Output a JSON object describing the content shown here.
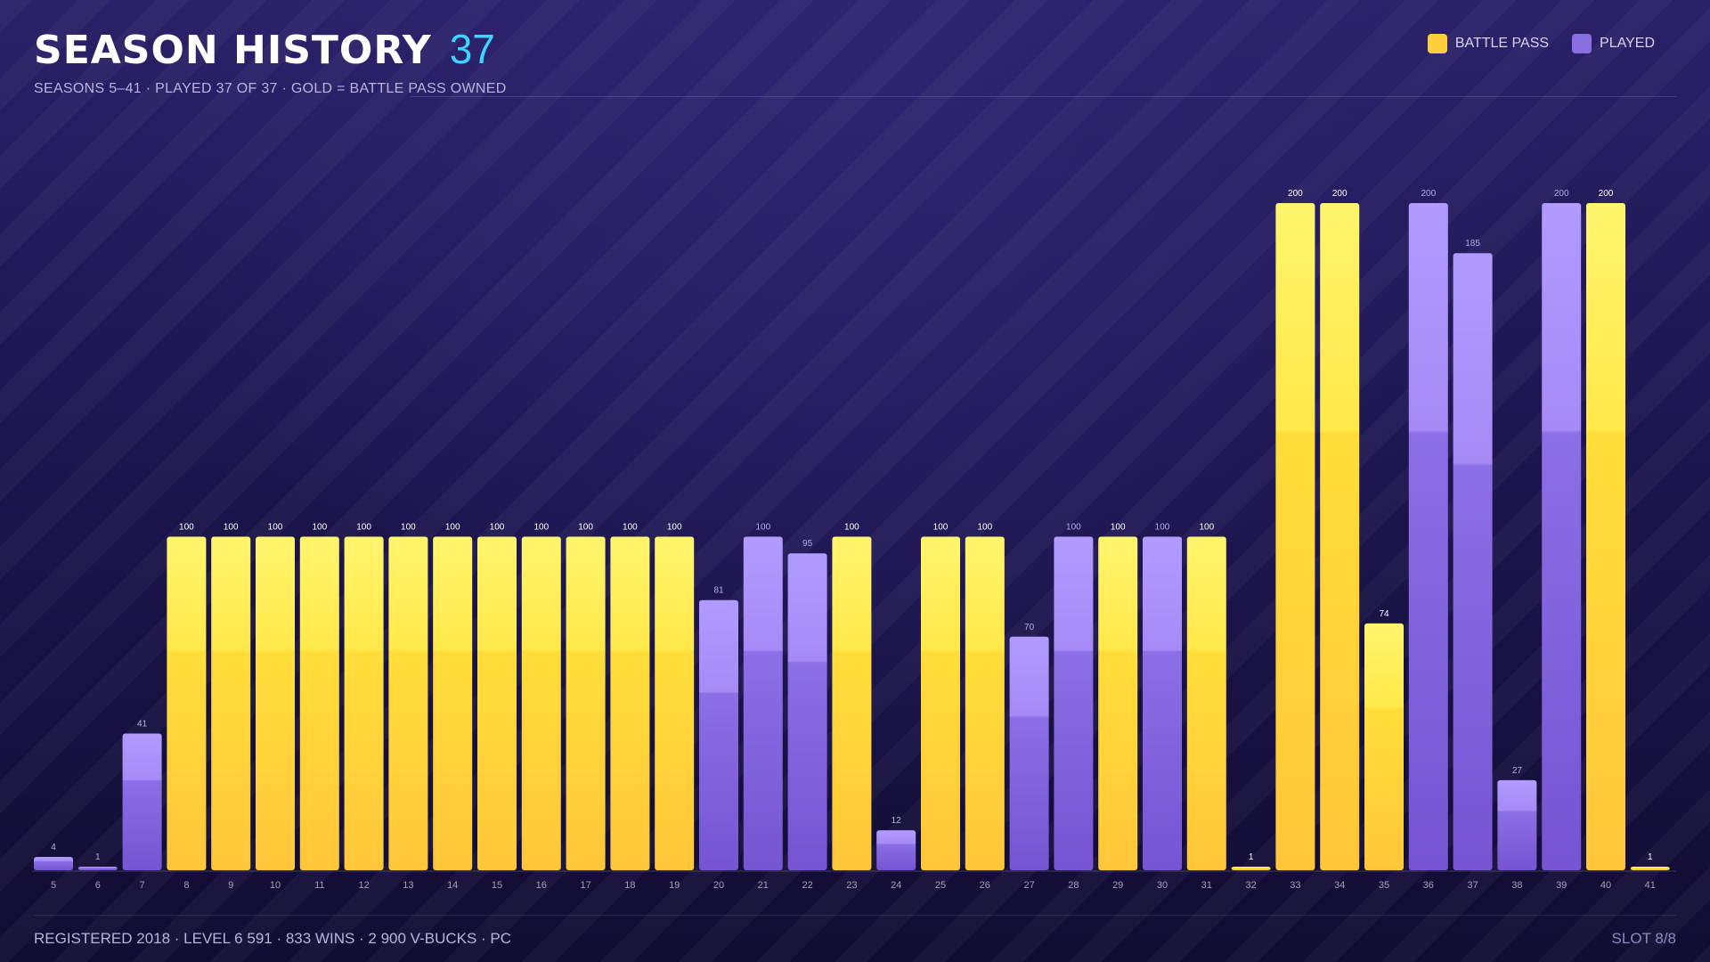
{
  "header": {
    "title": "SEASON HISTORY",
    "count": "37",
    "subtitle": "SEASONS 5–41  ·  PLAYED 37 OF 37  ·  GOLD = BATTLE PASS OWNED"
  },
  "legend": {
    "battle_pass": "BATTLE PASS",
    "played": "PLAYED"
  },
  "footer": {
    "left": "REGISTERED 2018  ·  LEVEL 6 591  ·  833 WINS  ·  2 900 V-BUCKS  ·  PC",
    "right": "SLOT 8/8"
  },
  "colors": {
    "battle_pass": "#ffcf3b",
    "played": "#8a6fe0",
    "accent": "#3fd3ff"
  },
  "chart_data": {
    "type": "bar",
    "title": "SEASON HISTORY",
    "xlabel": "",
    "ylabel": "",
    "ylim": [
      0,
      200
    ],
    "grid": false,
    "legend_position": "top-right",
    "categories": [
      "5",
      "6",
      "7",
      "8",
      "9",
      "10",
      "11",
      "12",
      "13",
      "14",
      "15",
      "16",
      "17",
      "18",
      "19",
      "20",
      "21",
      "22",
      "23",
      "24",
      "25",
      "26",
      "27",
      "28",
      "29",
      "30",
      "31",
      "32",
      "33",
      "34",
      "35",
      "36",
      "37",
      "38",
      "39",
      "40",
      "41"
    ],
    "values": [
      4,
      1,
      41,
      100,
      100,
      100,
      100,
      100,
      100,
      100,
      100,
      100,
      100,
      100,
      100,
      81,
      100,
      95,
      100,
      12,
      100,
      100,
      70,
      100,
      100,
      100,
      100,
      1,
      200,
      200,
      74,
      200,
      185,
      27,
      200,
      200,
      1
    ],
    "battle_pass": [
      false,
      false,
      false,
      true,
      true,
      true,
      true,
      true,
      true,
      true,
      true,
      true,
      true,
      true,
      true,
      false,
      false,
      false,
      true,
      false,
      true,
      true,
      false,
      false,
      true,
      false,
      true,
      true,
      true,
      true,
      true,
      false,
      false,
      false,
      false,
      true,
      true
    ],
    "series": [
      {
        "name": "BATTLE PASS",
        "color": "#ffcf3b"
      },
      {
        "name": "PLAYED",
        "color": "#8a6fe0"
      }
    ]
  }
}
